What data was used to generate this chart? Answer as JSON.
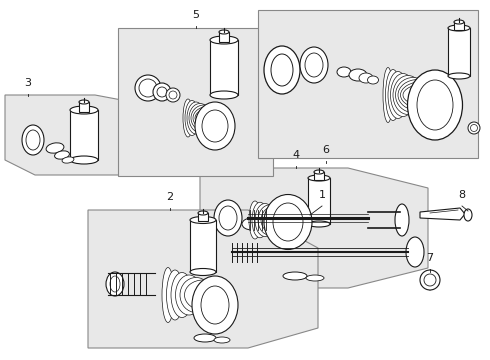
{
  "bg_color": "#ffffff",
  "line_color": "#1a1a1a",
  "box_fill": "#e8e8e8",
  "figsize": [
    4.9,
    3.6
  ],
  "dpi": 100
}
